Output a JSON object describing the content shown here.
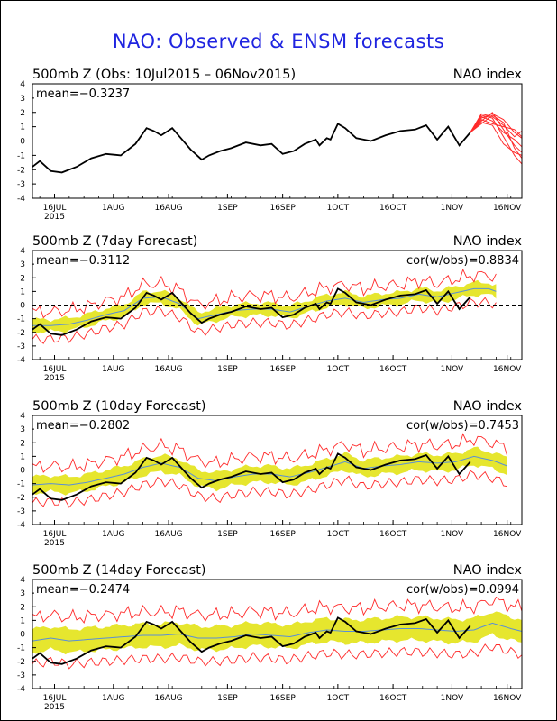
{
  "title": "NAO: Observed & ENSM forecasts",
  "colors": {
    "title": "#1f24e0",
    "observed": "#000000",
    "forecast_members": "#ff2a2a",
    "ensemble_band": "#e6e62e",
    "ensemble_mean": "#5a8fd6",
    "spread_lines": "#ff2a2a"
  },
  "x_axis": {
    "labels": [
      "16JUL",
      "1AUG",
      "16AUG",
      "1SEP",
      "16SEP",
      "1OCT",
      "16OCT",
      "1NOV",
      "16NOV"
    ],
    "label_days": [
      6,
      22,
      37,
      53,
      68,
      83,
      98,
      114,
      129
    ],
    "year_label": "2015",
    "day0": "10Jul2015",
    "range_days": [
      0,
      133
    ]
  },
  "chart_data": [
    {
      "type": "line",
      "title": "500mb Z (Obs: 10Jul2015 – 06Nov2015)",
      "right_label": "NAO index",
      "mean_text": "mean=−0.3237",
      "cor_text": "",
      "ylim": [
        -4,
        4
      ],
      "yticks": [
        -4,
        -3,
        -2,
        -1,
        0,
        1,
        2,
        3,
        4
      ],
      "observed": {
        "x": [
          0,
          2,
          5,
          8,
          12,
          16,
          20,
          24,
          28,
          31,
          33,
          35,
          38,
          40,
          43,
          46,
          48,
          51,
          54,
          58,
          62,
          65,
          68,
          71,
          74,
          77,
          78,
          80,
          81,
          83,
          85,
          88,
          92,
          96,
          100,
          104,
          107,
          110,
          113,
          116,
          119
        ],
        "y": [
          -1.8,
          -1.4,
          -2.1,
          -2.2,
          -1.8,
          -1.2,
          -0.9,
          -1.0,
          -0.2,
          0.9,
          0.7,
          0.4,
          0.9,
          0.3,
          -0.6,
          -1.3,
          -1.0,
          -0.7,
          -0.5,
          -0.1,
          -0.3,
          -0.2,
          -0.9,
          -0.7,
          -0.2,
          0.1,
          -0.3,
          0.2,
          0.1,
          1.2,
          0.9,
          0.2,
          0.0,
          0.4,
          0.7,
          0.8,
          1.1,
          0.1,
          1.0,
          -0.3,
          0.6
        ]
      },
      "forecast_members": [
        {
          "x": [
            119,
            122,
            125,
            128,
            131,
            133
          ],
          "y": [
            0.6,
            1.6,
            1.9,
            1.5,
            0.6,
            0.2
          ]
        },
        {
          "x": [
            119,
            122,
            125,
            128,
            131,
            133
          ],
          "y": [
            0.6,
            1.4,
            2.0,
            0.8,
            -0.3,
            -0.8
          ]
        },
        {
          "x": [
            119,
            122,
            125,
            128,
            131,
            133
          ],
          "y": [
            0.6,
            1.8,
            1.6,
            0.3,
            -1.0,
            -1.6
          ]
        },
        {
          "x": [
            119,
            122,
            125,
            128,
            131,
            133
          ],
          "y": [
            0.6,
            1.5,
            1.2,
            1.0,
            0.8,
            0.3
          ]
        },
        {
          "x": [
            119,
            122,
            125,
            128,
            131,
            133
          ],
          "y": [
            0.6,
            1.2,
            1.8,
            1.3,
            -0.5,
            -1.2
          ]
        },
        {
          "x": [
            119,
            122,
            125,
            128,
            131,
            133
          ],
          "y": [
            0.6,
            1.7,
            1.4,
            0.6,
            0.1,
            -0.4
          ]
        },
        {
          "x": [
            119,
            122,
            125,
            128,
            131,
            133
          ],
          "y": [
            0.6,
            1.3,
            1.1,
            -0.2,
            -0.8,
            -1.0
          ]
        },
        {
          "x": [
            119,
            122,
            125,
            128,
            131,
            133
          ],
          "y": [
            0.6,
            1.9,
            1.7,
            1.1,
            0.3,
            0.7
          ]
        }
      ]
    },
    {
      "type": "line",
      "title": "500mb Z (7day Forecast)",
      "right_label": "NAO index",
      "mean_text": "mean=−0.3112",
      "cor_text": "cor(w/obs)=0.8834",
      "ylim": [
        -4,
        4
      ],
      "yticks": [
        -4,
        -3,
        -2,
        -1,
        0,
        1,
        2,
        3,
        4
      ],
      "observed": {
        "x": [
          0,
          2,
          5,
          8,
          12,
          16,
          20,
          24,
          28,
          31,
          33,
          35,
          38,
          40,
          43,
          46,
          48,
          51,
          54,
          58,
          62,
          65,
          68,
          71,
          74,
          77,
          78,
          80,
          81,
          83,
          85,
          88,
          92,
          96,
          100,
          104,
          107,
          110,
          113,
          116,
          119
        ],
        "y": [
          -1.8,
          -1.4,
          -2.1,
          -2.2,
          -1.8,
          -1.2,
          -0.9,
          -1.0,
          -0.2,
          0.9,
          0.7,
          0.4,
          0.9,
          0.3,
          -0.6,
          -1.3,
          -1.0,
          -0.7,
          -0.5,
          -0.1,
          -0.3,
          -0.2,
          -0.9,
          -0.7,
          -0.2,
          0.1,
          -0.3,
          0.2,
          0.1,
          1.2,
          0.9,
          0.2,
          0.0,
          0.4,
          0.7,
          0.8,
          1.1,
          0.1,
          1.0,
          -0.3,
          0.6
        ]
      },
      "ens_mean": {
        "x": [
          0,
          5,
          10,
          15,
          20,
          25,
          30,
          35,
          40,
          45,
          50,
          55,
          60,
          65,
          70,
          75,
          80,
          85,
          90,
          95,
          100,
          105,
          110,
          115,
          120,
          124,
          126
        ],
        "y": [
          -1.5,
          -1.5,
          -1.4,
          -1.1,
          -0.7,
          -0.4,
          0.5,
          0.6,
          0.1,
          -1.0,
          -0.7,
          -0.4,
          -0.3,
          -0.3,
          -0.5,
          -0.1,
          0.3,
          0.5,
          0.2,
          0.4,
          0.5,
          0.8,
          0.6,
          0.9,
          1.2,
          1.2,
          1.0
        ]
      },
      "band_halfwidth": 0.45,
      "spread_halfwidth": 1.0
    },
    {
      "type": "line",
      "title": "500mb Z (10day Forecast)",
      "right_label": "NAO index",
      "mean_text": "mean=−0.2802",
      "cor_text": "cor(w/obs)=0.7453",
      "ylim": [
        -4,
        4
      ],
      "yticks": [
        -4,
        -3,
        -2,
        -1,
        0,
        1,
        2,
        3,
        4
      ],
      "observed": {
        "x": [
          0,
          2,
          5,
          8,
          12,
          16,
          20,
          24,
          28,
          31,
          33,
          35,
          38,
          40,
          43,
          46,
          48,
          51,
          54,
          58,
          62,
          65,
          68,
          71,
          74,
          77,
          78,
          80,
          81,
          83,
          85,
          88,
          92,
          96,
          100,
          104,
          107,
          110,
          113,
          116,
          119
        ],
        "y": [
          -1.8,
          -1.4,
          -2.1,
          -2.2,
          -1.8,
          -1.2,
          -0.9,
          -1.0,
          -0.2,
          0.9,
          0.7,
          0.4,
          0.9,
          0.3,
          -0.6,
          -1.3,
          -1.0,
          -0.7,
          -0.5,
          -0.1,
          -0.3,
          -0.2,
          -0.9,
          -0.7,
          -0.2,
          0.1,
          -0.3,
          0.2,
          0.1,
          1.2,
          0.9,
          0.2,
          0.0,
          0.4,
          0.7,
          0.8,
          1.1,
          0.1,
          1.0,
          -0.3,
          0.6
        ]
      },
      "ens_mean": {
        "x": [
          0,
          5,
          10,
          15,
          20,
          25,
          30,
          35,
          40,
          45,
          50,
          55,
          60,
          65,
          70,
          75,
          80,
          85,
          90,
          95,
          100,
          105,
          110,
          115,
          120,
          125,
          129
        ],
        "y": [
          -1.1,
          -1.0,
          -1.1,
          -0.9,
          -0.6,
          -0.3,
          0.2,
          0.5,
          0.2,
          -0.6,
          -0.8,
          -0.5,
          -0.3,
          -0.3,
          -0.5,
          -0.2,
          0.2,
          0.6,
          0.1,
          0.3,
          0.4,
          0.6,
          0.5,
          0.6,
          1.0,
          0.7,
          0.3
        ]
      },
      "band_halfwidth": 0.6,
      "spread_halfwidth": 1.3
    },
    {
      "type": "line",
      "title": "500mb Z (14day Forecast)",
      "right_label": "NAO index",
      "mean_text": "mean=−0.2474",
      "cor_text": "cor(w/obs)=0.0994",
      "ylim": [
        -4,
        4
      ],
      "yticks": [
        -4,
        -3,
        -2,
        -1,
        0,
        1,
        2,
        3,
        4
      ],
      "observed": {
        "x": [
          0,
          2,
          5,
          8,
          12,
          16,
          20,
          24,
          28,
          31,
          33,
          35,
          38,
          40,
          43,
          46,
          48,
          51,
          54,
          58,
          62,
          65,
          68,
          71,
          74,
          77,
          78,
          80,
          81,
          83,
          85,
          88,
          92,
          96,
          100,
          104,
          107,
          110,
          113,
          116,
          119
        ],
        "y": [
          -1.8,
          -1.4,
          -2.1,
          -2.2,
          -1.8,
          -1.2,
          -0.9,
          -1.0,
          -0.2,
          0.9,
          0.7,
          0.4,
          0.9,
          0.3,
          -0.6,
          -1.3,
          -1.0,
          -0.7,
          -0.5,
          -0.1,
          -0.3,
          -0.2,
          -0.9,
          -0.7,
          -0.2,
          0.1,
          -0.3,
          0.2,
          0.1,
          1.2,
          0.9,
          0.2,
          0.0,
          0.4,
          0.7,
          0.8,
          1.1,
          0.1,
          1.0,
          -0.3,
          0.6
        ]
      },
      "ens_mean": {
        "x": [
          0,
          5,
          10,
          15,
          20,
          25,
          30,
          35,
          40,
          45,
          50,
          55,
          60,
          65,
          70,
          75,
          80,
          85,
          90,
          95,
          100,
          105,
          110,
          115,
          120,
          125,
          130,
          133
        ],
        "y": [
          -0.5,
          -0.3,
          -0.5,
          -0.4,
          -0.3,
          -0.2,
          -0.1,
          -0.1,
          0.0,
          -0.3,
          -0.3,
          -0.2,
          0.0,
          -0.1,
          -0.2,
          0.1,
          0.3,
          0.2,
          0.2,
          0.3,
          0.4,
          0.4,
          0.3,
          0.2,
          0.3,
          0.8,
          0.4,
          0.2
        ]
      },
      "band_halfwidth": 0.85,
      "spread_halfwidth": 1.7
    }
  ]
}
